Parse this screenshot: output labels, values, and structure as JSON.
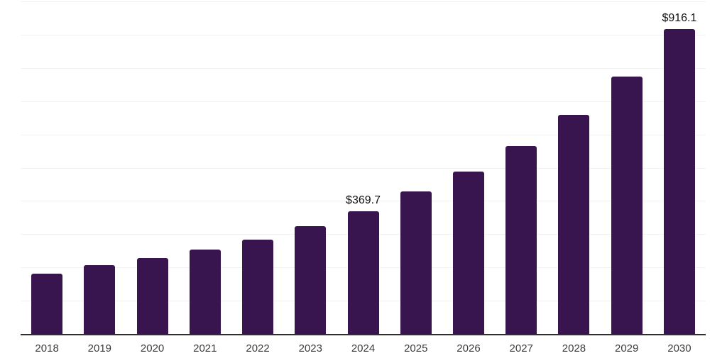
{
  "chart_data": {
    "type": "bar",
    "title": "",
    "xlabel": "",
    "ylabel": "",
    "categories": [
      "2018",
      "2019",
      "2020",
      "2021",
      "2022",
      "2023",
      "2024",
      "2025",
      "2026",
      "2027",
      "2028",
      "2029",
      "2030"
    ],
    "values": [
      181.3,
      206.8,
      227.4,
      252.9,
      283.9,
      325.1,
      369.7,
      427.9,
      487.8,
      565.5,
      659.3,
      774.2,
      916.1
    ],
    "data_labels": [
      "",
      "",
      "",
      "",
      "",
      "",
      "$369.7",
      "",
      "",
      "",
      "",
      "",
      "$916.1"
    ],
    "ylim": [
      0,
      1000
    ],
    "grid_step": 100,
    "grid": "horizontal-only",
    "legend": "none",
    "y_axis_labels": "none",
    "bar_color": "#38154e",
    "gridline_color": "#f2f2f2",
    "axis_line_color": "#2e2e2e",
    "tick_label_color": "#3c3c3c",
    "data_label_color": "#111111",
    "background_color": "#ffffff"
  }
}
